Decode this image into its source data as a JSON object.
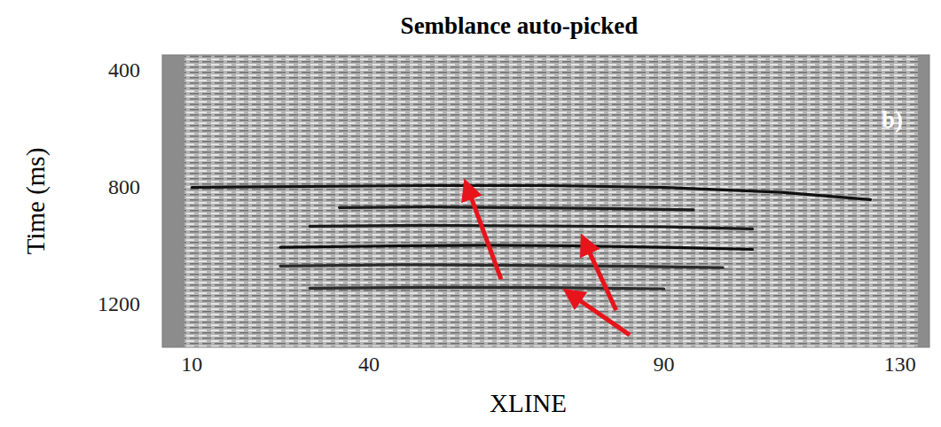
{
  "chart_data": {
    "type": "line",
    "title": "Semblance auto-picked",
    "panel_label": "b)",
    "x_label": "XLINE",
    "y_label": "Time (ms)",
    "xlim": [
      5,
      135
    ],
    "ylim": [
      350,
      1350
    ],
    "xticks": [
      10,
      40,
      90,
      130
    ],
    "yticks": [
      400,
      800,
      1200
    ],
    "series": [
      {
        "x": [
          10,
          30,
          50,
          70,
          90,
          110,
          125
        ],
        "values": [
          803,
          800,
          797,
          797,
          803,
          820,
          845
        ],
        "color": "#111111"
      },
      {
        "x": [
          35,
          50,
          65,
          80,
          95
        ],
        "values": [
          872,
          870,
          872,
          875,
          880
        ],
        "color": "#1a1a1a"
      },
      {
        "x": [
          30,
          50,
          70,
          90,
          105
        ],
        "values": [
          936,
          933,
          935,
          938,
          945
        ],
        "color": "#1a1a1a"
      },
      {
        "x": [
          25,
          45,
          60,
          75,
          90,
          105
        ],
        "values": [
          1008,
          1003,
          1001,
          1003,
          1008,
          1015
        ],
        "color": "#0d0d0d"
      },
      {
        "x": [
          25,
          45,
          65,
          85,
          100
        ],
        "values": [
          1072,
          1068,
          1070,
          1073,
          1078
        ],
        "color": "#2a2a2a"
      },
      {
        "x": [
          30,
          50,
          70,
          90
        ],
        "values": [
          1148,
          1145,
          1146,
          1150
        ],
        "color": "#2a2a2a"
      }
    ],
    "arrows": [
      {
        "x": [
          62.4,
          56.8
        ],
        "y": [
          1117,
          808
        ],
        "color": "#e8141b"
      },
      {
        "x": [
          81.9,
          76.7
        ],
        "y": [
          1223,
          995
        ],
        "color": "#e8141b"
      },
      {
        "x": [
          84.2,
          74.4
        ],
        "y": [
          1308,
          1171
        ],
        "color": "#e8141b"
      }
    ]
  }
}
